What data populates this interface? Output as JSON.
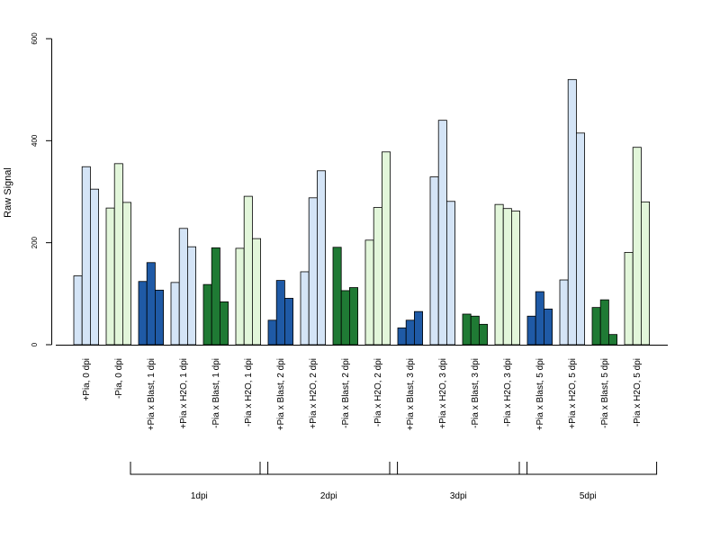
{
  "chart_data": {
    "type": "bar",
    "ylabel": "Raw Signal",
    "ylim": [
      0,
      600
    ],
    "yticks": [
      0,
      200,
      400,
      600
    ],
    "colors": {
      "inoculated_pia_plus": "#1f5aa6",
      "mock_pia_plus": "#d4e4f6",
      "inoculated_pia_minus": "#1f7a34",
      "mock_pia_minus": "#e2f6da"
    },
    "categories": [
      {
        "label": "+Pia, 0 dpi",
        "color_key": "mock_pia_plus",
        "values": [
          135,
          349,
          305
        ]
      },
      {
        "label": "-Pia, 0 dpi",
        "color_key": "mock_pia_minus",
        "values": [
          268,
          355,
          279
        ]
      },
      {
        "label": "+Pia x Blast, 1 dpi",
        "color_key": "inoculated_pia_plus",
        "values": [
          124,
          161,
          107
        ]
      },
      {
        "label": "+Pia x H2O, 1 dpi",
        "color_key": "mock_pia_plus",
        "values": [
          122,
          228,
          192
        ]
      },
      {
        "label": "-Pia x Blast, 1 dpi",
        "color_key": "inoculated_pia_minus",
        "values": [
          118,
          190,
          84
        ]
      },
      {
        "label": "-Pia x H2O, 1 dpi",
        "color_key": "mock_pia_minus",
        "values": [
          189,
          291,
          208
        ]
      },
      {
        "label": "+Pia x Blast, 2 dpi",
        "color_key": "inoculated_pia_plus",
        "values": [
          48,
          126,
          91
        ]
      },
      {
        "label": "+Pia x H2O, 2 dpi",
        "color_key": "mock_pia_plus",
        "values": [
          143,
          288,
          341
        ]
      },
      {
        "label": "-Pia x Blast, 2 dpi",
        "color_key": "inoculated_pia_minus",
        "values": [
          191,
          106,
          112
        ]
      },
      {
        "label": "-Pia x H2O, 2 dpi",
        "color_key": "mock_pia_minus",
        "values": [
          205,
          269,
          378
        ]
      },
      {
        "label": "+Pia x Blast, 3 dpi",
        "color_key": "inoculated_pia_plus",
        "values": [
          33,
          48,
          65
        ]
      },
      {
        "label": "+Pia x H2O, 3 dpi",
        "color_key": "mock_pia_plus",
        "values": [
          329,
          440,
          281
        ]
      },
      {
        "label": "-Pia x Blast, 3 dpi",
        "color_key": "inoculated_pia_minus",
        "values": [
          60,
          56,
          40
        ]
      },
      {
        "label": "-Pia x H2O, 3 dpi",
        "color_key": "mock_pia_minus",
        "values": [
          275,
          267,
          262
        ]
      },
      {
        "label": "+Pia x Blast, 5 dpi",
        "color_key": "inoculated_pia_plus",
        "values": [
          56,
          104,
          70
        ]
      },
      {
        "label": "+Pia x H2O, 5 dpi",
        "color_key": "mock_pia_plus",
        "values": [
          127,
          520,
          415
        ]
      },
      {
        "label": "-Pia x Blast, 5 dpi",
        "color_key": "inoculated_pia_minus",
        "values": [
          73,
          88,
          20
        ]
      },
      {
        "label": "-Pia x H2O, 5 dpi",
        "color_key": "mock_pia_minus",
        "values": [
          181,
          387,
          280
        ]
      }
    ],
    "groups": [
      {
        "label": "1dpi",
        "first_category": 2,
        "last_category": 5
      },
      {
        "label": "2dpi",
        "first_category": 6,
        "last_category": 9
      },
      {
        "label": "3dpi",
        "first_category": 10,
        "last_category": 13
      },
      {
        "label": "5dpi",
        "first_category": 14,
        "last_category": 17
      }
    ]
  }
}
